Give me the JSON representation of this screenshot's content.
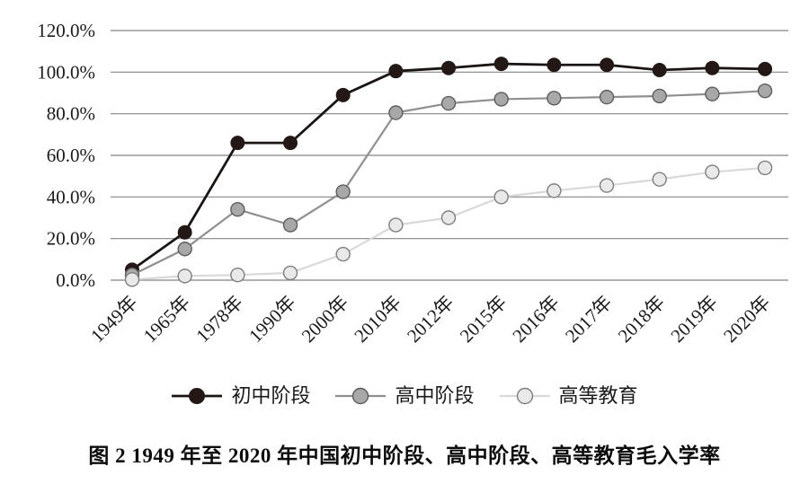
{
  "figure": {
    "caption": "图 2  1949 年至 2020 年中国初中阶段、高中阶段、高等教育毛入学率"
  },
  "chart_data": {
    "type": "line",
    "title": "",
    "xlabel": "",
    "ylabel": "",
    "categories": [
      "1949年",
      "1965年",
      "1978年",
      "1990年",
      "2000年",
      "2010年",
      "2012年",
      "2015年",
      "2016年",
      "2017年",
      "2018年",
      "2019年",
      "2020年"
    ],
    "series": [
      {
        "name": "初中阶段",
        "values": [
          5,
          23,
          66,
          66,
          89,
          100.5,
          102,
          104,
          103.5,
          103.5,
          101,
          102,
          101.5
        ],
        "line_color": "#1a1413",
        "marker_fill": "#231815",
        "marker_stroke": "#231815"
      },
      {
        "name": "高中阶段",
        "values": [
          2.5,
          15,
          34,
          26.5,
          42.5,
          80.5,
          85,
          87,
          87.5,
          88,
          88.5,
          89.5,
          91
        ],
        "line_color": "#8f8f8f",
        "marker_fill": "#a8a8a8",
        "marker_stroke": "#5d5d5d"
      },
      {
        "name": "高等教育",
        "values": [
          0.3,
          2,
          2.5,
          3.5,
          12.5,
          26.5,
          30,
          40,
          43,
          45.5,
          48.5,
          52,
          54
        ],
        "line_color": "#d9d9d9",
        "marker_fill": "#e9e9e9",
        "marker_stroke": "#7f7f7f"
      }
    ],
    "y_ticks": [
      "0.0%",
      "20.0%",
      "40.0%",
      "60.0%",
      "80.0%",
      "100.0%",
      "120.0%"
    ],
    "ylim": [
      0,
      120
    ],
    "y_tick_step": 20,
    "grid": "horizontal-only",
    "legend_position": "bottom",
    "marker": "circle"
  }
}
